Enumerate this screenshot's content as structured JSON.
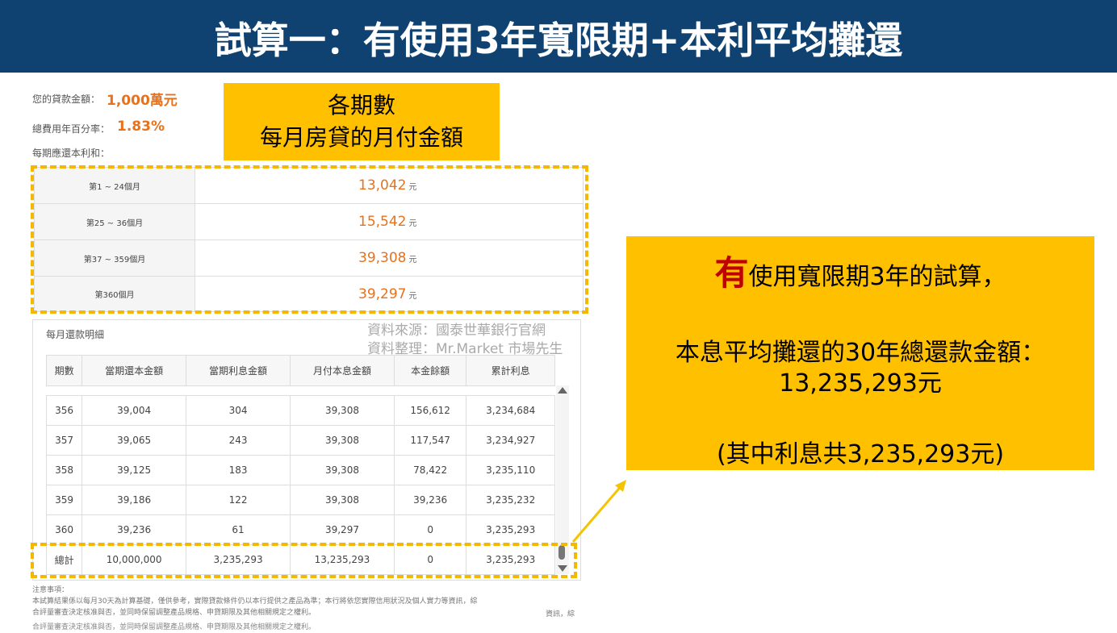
{
  "header": {
    "title": "試算一：有使用3年寬限期+本利平均攤還"
  },
  "summary": {
    "loan_label": "您的貸款金額：",
    "loan_value": "1,000萬元",
    "rate_label": "總費用年百分率：",
    "rate_value": "1.83%",
    "period_label": "每期應還本利和："
  },
  "callout_top": {
    "line1": "各期數",
    "line2": "每月房貸的月付金額"
  },
  "periods": {
    "rows": [
      [
        "第1 ~ 24個月",
        "13,042",
        "元"
      ],
      [
        "第25 ~ 36個月",
        "15,542",
        "元"
      ],
      [
        "第37 ~ 359個月",
        "39,308",
        "元"
      ],
      [
        "第360個月",
        "39,297",
        "元"
      ]
    ]
  },
  "source": {
    "line1": "資料來源：國泰世華銀行官網",
    "line2": "資料整理：Mr.Market 市場先生"
  },
  "detail": {
    "title": "每月還款明細",
    "headers": [
      "期數",
      "當期還本金額",
      "當期利息金額",
      "月付本息金額",
      "本金餘額",
      "累計利息"
    ],
    "rows": [
      [
        "356",
        "39,004",
        "304",
        "39,308",
        "156,612",
        "3,234,684"
      ],
      [
        "357",
        "39,065",
        "243",
        "39,308",
        "117,547",
        "3,234,927"
      ],
      [
        "358",
        "39,125",
        "183",
        "39,308",
        "78,422",
        "3,235,110"
      ],
      [
        "359",
        "39,186",
        "122",
        "39,308",
        "39,236",
        "3,235,232"
      ],
      [
        "360",
        "39,236",
        "61",
        "39,297",
        "0",
        "3,235,293"
      ]
    ],
    "total": [
      "總計",
      "10,000,000",
      "3,235,293",
      "13,235,293",
      "0",
      "3,235,293"
    ]
  },
  "notes": {
    "title": "注意事項：",
    "line1": "本試算結果係以每月30天為計算基礎，僅供參考，實際貸款條件仍以本行提供之產品為準；本行將依您實際信用狀況及個人實力等資訊，綜",
    "line2": "合評量審查決定核准與否，並同時保留調整產品規格、申貸期限及其他相關規定之權利。",
    "stray": "資訊，綜",
    "line3": "合評量審查決定核准與否，並同時保留調整產品規格、申貸期限及其他相關規定之權利。"
  },
  "callout_right": {
    "emphasis": "有",
    "line1": "使用寬限期3年的試算，",
    "line2": "本息平均攤還的30年總還款金額：",
    "line3": "13,235,293元",
    "line4": "(其中利息共3,235,293元)"
  }
}
